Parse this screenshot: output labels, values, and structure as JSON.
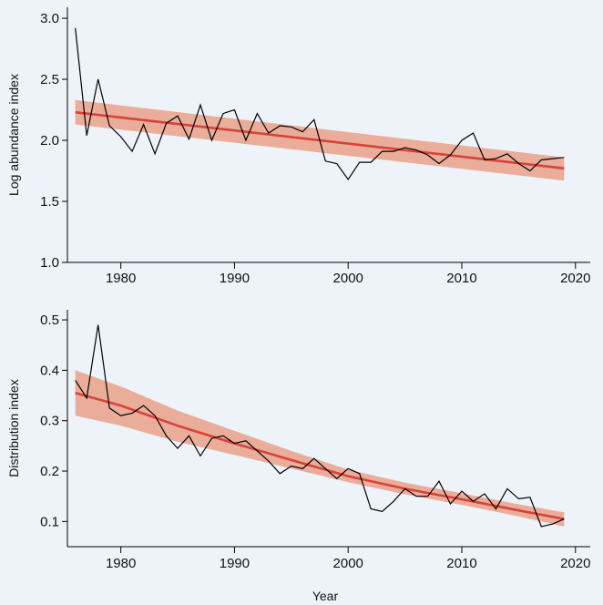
{
  "colors": {
    "background": "#eef3f9",
    "observed_line": "#000000",
    "trend_line": "#d9423b",
    "confidence_band": "#e8a088"
  },
  "chart_data": [
    {
      "type": "line",
      "title": "",
      "xlabel": "",
      "ylabel": "Log abundance index",
      "xlim": [
        1975,
        2021
      ],
      "ylim": [
        1.0,
        3.0
      ],
      "xticks": [
        1980,
        1990,
        2000,
        2010,
        2020
      ],
      "xtick_labels": [
        "1980",
        "1990",
        "2000",
        "2010",
        "2020"
      ],
      "yticks": [
        1.0,
        1.5,
        2.0,
        2.5,
        3.0
      ],
      "ytick_labels": [
        "1.0",
        "1.5",
        "2.0",
        "2.5",
        "3.0"
      ],
      "grid": false,
      "x": [
        1976,
        1977,
        1978,
        1979,
        1980,
        1981,
        1982,
        1983,
        1984,
        1985,
        1986,
        1987,
        1988,
        1989,
        1990,
        1991,
        1992,
        1993,
        1994,
        1995,
        1996,
        1997,
        1998,
        1999,
        2000,
        2001,
        2002,
        2003,
        2004,
        2005,
        2006,
        2007,
        2008,
        2009,
        2010,
        2011,
        2012,
        2013,
        2014,
        2015,
        2016,
        2017,
        2018,
        2019
      ],
      "series": [
        {
          "values": [
            2.92,
            2.04,
            2.5,
            2.12,
            2.03,
            1.91,
            2.13,
            1.89,
            2.14,
            2.2,
            2.01,
            2.29,
            2.0,
            2.22,
            2.25,
            2.0,
            2.22,
            2.06,
            2.12,
            2.11,
            2.07,
            2.17,
            1.83,
            1.81,
            1.68,
            1.82,
            1.82,
            1.91,
            1.91,
            1.94,
            1.92,
            1.88,
            1.81,
            1.88,
            2.0,
            2.06,
            1.84,
            1.85,
            1.89,
            1.81,
            1.75,
            1.84,
            1.85,
            1.86
          ]
        }
      ],
      "trend": {
        "x": [
          1976,
          2019
        ],
        "values": [
          2.23,
          1.77
        ],
        "lower": [
          2.13,
          1.67
        ],
        "upper": [
          2.33,
          1.86
        ]
      }
    },
    {
      "type": "line",
      "title": "",
      "xlabel": "Year",
      "ylabel": "Distribution index",
      "xlim": [
        1975,
        2021
      ],
      "ylim": [
        0.05,
        0.52
      ],
      "xticks": [
        1980,
        1990,
        2000,
        2010,
        2020
      ],
      "xtick_labels": [
        "1980",
        "1990",
        "2000",
        "2010",
        "2020"
      ],
      "yticks": [
        0.1,
        0.2,
        0.3,
        0.4,
        0.5
      ],
      "ytick_labels": [
        "0.1",
        "0.2",
        "0.3",
        "0.4",
        "0.5"
      ],
      "grid": false,
      "x": [
        1976,
        1977,
        1978,
        1979,
        1980,
        1981,
        1982,
        1983,
        1984,
        1985,
        1986,
        1987,
        1988,
        1989,
        1990,
        1991,
        1992,
        1993,
        1994,
        1995,
        1996,
        1997,
        1998,
        1999,
        2000,
        2001,
        2002,
        2003,
        2004,
        2005,
        2006,
        2007,
        2008,
        2009,
        2010,
        2011,
        2012,
        2013,
        2014,
        2015,
        2016,
        2017,
        2018,
        2019
      ],
      "series": [
        {
          "values": [
            0.38,
            0.345,
            0.49,
            0.325,
            0.31,
            0.315,
            0.33,
            0.31,
            0.27,
            0.245,
            0.27,
            0.23,
            0.265,
            0.27,
            0.255,
            0.26,
            0.24,
            0.22,
            0.195,
            0.21,
            0.205,
            0.225,
            0.205,
            0.185,
            0.205,
            0.195,
            0.125,
            0.12,
            0.14,
            0.165,
            0.15,
            0.15,
            0.18,
            0.135,
            0.16,
            0.14,
            0.155,
            0.125,
            0.165,
            0.145,
            0.148,
            0.09,
            0.095,
            0.105
          ]
        }
      ],
      "trend": {
        "x": [
          1976,
          1980,
          1985,
          1990,
          1995,
          2000,
          2005,
          2010,
          2015,
          2019
        ],
        "values": [
          0.355,
          0.33,
          0.29,
          0.255,
          0.222,
          0.19,
          0.165,
          0.144,
          0.122,
          0.105
        ],
        "lower": [
          0.31,
          0.29,
          0.258,
          0.232,
          0.205,
          0.178,
          0.154,
          0.133,
          0.11,
          0.09
        ],
        "upper": [
          0.4,
          0.368,
          0.32,
          0.28,
          0.24,
          0.203,
          0.177,
          0.156,
          0.134,
          0.118
        ]
      }
    }
  ]
}
